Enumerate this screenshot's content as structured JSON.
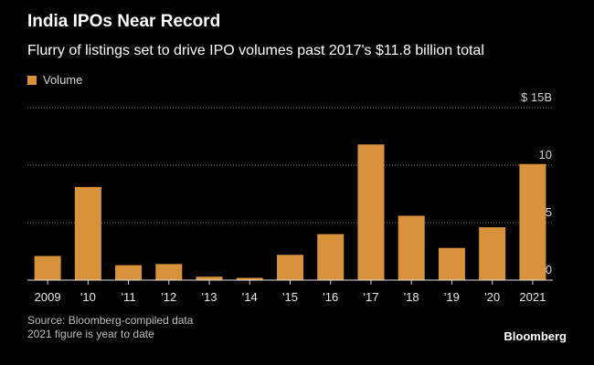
{
  "chart_data": {
    "type": "bar",
    "title": "India IPOs Near Record",
    "subtitle": "Flurry of listings set to drive IPO volumes past 2017's $11.8 billion total",
    "legend": [
      "Volume"
    ],
    "categories": [
      "2009",
      "'10",
      "'11",
      "'12",
      "'13",
      "'14",
      "'15",
      "'16",
      "'17",
      "'18",
      "'19",
      "'20",
      "2021"
    ],
    "series": [
      {
        "name": "Volume",
        "values": [
          2.1,
          8.1,
          1.3,
          1.4,
          0.3,
          0.2,
          2.2,
          4.0,
          11.8,
          5.6,
          2.8,
          4.6,
          10.1
        ]
      }
    ],
    "ylim": [
      0,
      15
    ],
    "yticks": [
      0,
      5,
      10,
      15
    ],
    "ytick_labels": [
      "0",
      "5",
      "10",
      "$ 15B"
    ],
    "grid": true,
    "bar_color": "#d8923c",
    "source": "Source: Bloomberg-compiled data",
    "note": "2021 figure is year to date",
    "brand": "Bloomberg"
  }
}
